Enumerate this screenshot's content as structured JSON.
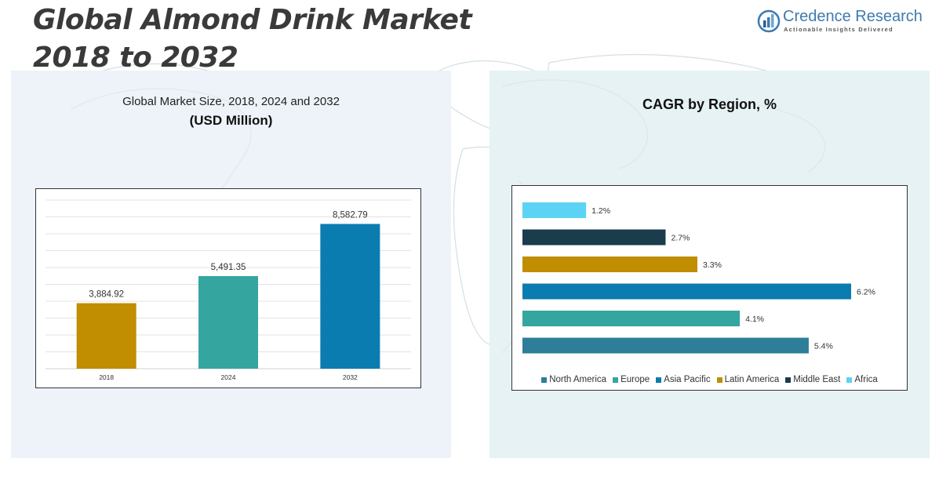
{
  "page": {
    "title_line1": "Global Almond Drink Market",
    "title_line2": "2018 to 2032"
  },
  "logo": {
    "name": "Credence Research",
    "tagline": "Actionable Insights Delivered",
    "icon": "bar-chart-logo-icon"
  },
  "left_panel": {
    "title": "Global Market Size, 2018, 2024 and 2032",
    "subtitle": "(USD Million)"
  },
  "right_panel": {
    "title": "CAGR by Region, %"
  },
  "chart_data": [
    {
      "type": "bar",
      "title": "Global Market Size, 2018, 2024 and 2032",
      "subtitle": "(USD Million)",
      "categories": [
        "2018",
        "2024",
        "2032"
      ],
      "values": [
        3884.92,
        5491.35,
        8582.79
      ],
      "value_labels": [
        "3,884.92",
        "5,491.35",
        "8,582.79"
      ],
      "colors": [
        "#c08e00",
        "#35a5a0",
        "#0a7cb0"
      ],
      "ylim": [
        0,
        10000
      ],
      "grid": true
    },
    {
      "type": "bar",
      "orientation": "horizontal",
      "title": "CAGR by Region, %",
      "categories": [
        "Africa",
        "Middle East",
        "Latin America",
        "Asia Pacific",
        "Europe",
        "North America"
      ],
      "values": [
        1.2,
        2.7,
        3.3,
        6.2,
        4.1,
        5.4
      ],
      "value_labels": [
        "1.2%",
        "2.7%",
        "3.3%",
        "6.2%",
        "4.1%",
        "5.4%"
      ],
      "colors": [
        "#5cd3f4",
        "#1a3c4c",
        "#c08e00",
        "#0a7cb0",
        "#35a5a0",
        "#2e7d99"
      ],
      "xlim": [
        0,
        6.2
      ],
      "legend": {
        "position": "bottom",
        "entries": [
          {
            "label": "North America",
            "color": "#2e7d99"
          },
          {
            "label": "Europe",
            "color": "#35a5a0"
          },
          {
            "label": "Asia Pacific",
            "color": "#0a7cb0"
          },
          {
            "label": "Latin America",
            "color": "#c08e00"
          },
          {
            "label": "Middle East",
            "color": "#1a3c4c"
          },
          {
            "label": "Africa",
            "color": "#5cd3f4"
          }
        ]
      }
    }
  ]
}
